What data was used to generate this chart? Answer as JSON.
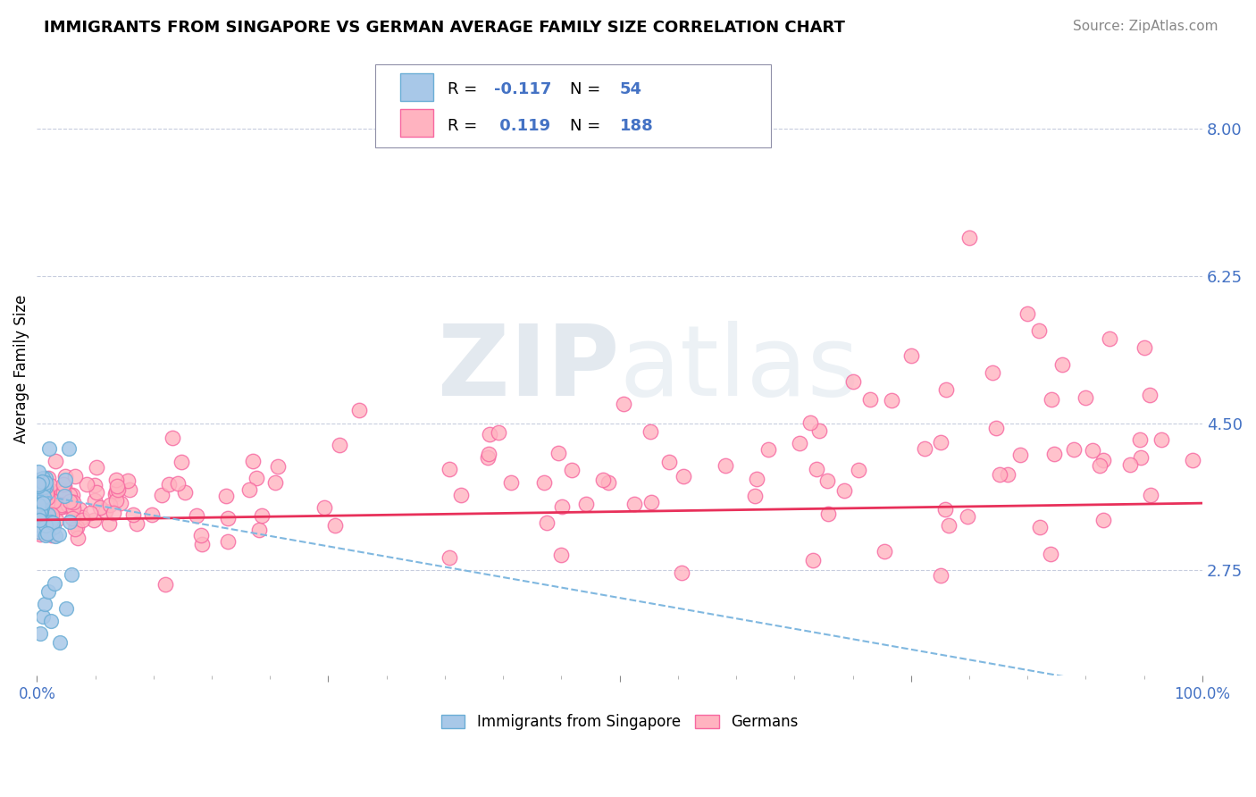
{
  "title": "IMMIGRANTS FROM SINGAPORE VS GERMAN AVERAGE FAMILY SIZE CORRELATION CHART",
  "source": "Source: ZipAtlas.com",
  "ylabel": "Average Family Size",
  "right_yticks": [
    2.75,
    4.5,
    6.25,
    8.0
  ],
  "xlim": [
    0.0,
    100.0
  ],
  "ylim": [
    1.5,
    8.8
  ],
  "blue_R": -0.117,
  "blue_N": 54,
  "pink_R": 0.119,
  "pink_N": 188,
  "legend_labels": [
    "Immigrants from Singapore",
    "Germans"
  ],
  "blue_color": "#a8c8e8",
  "blue_edge": "#6baed6",
  "pink_color": "#ffb3c0",
  "pink_edge": "#f768a1",
  "watermark": "ZIPatlas",
  "title_fontsize": 13,
  "source_fontsize": 11,
  "axis_color": "#4472c4",
  "grid_color": "#b0b8d0"
}
